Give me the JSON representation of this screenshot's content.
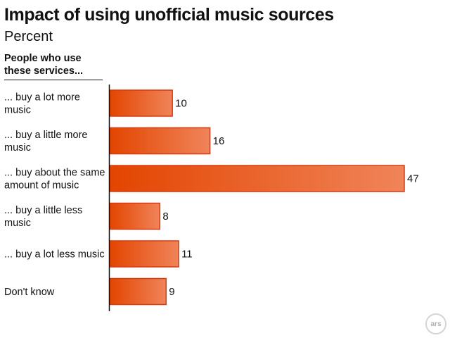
{
  "chart_data": {
    "type": "bar",
    "orientation": "horizontal",
    "title": "Impact of using unofficial music sources",
    "subtitle": "Percent",
    "category_header": "People who use these services...",
    "categories": [
      "... buy a lot more music",
      "... buy a little more music",
      "... buy about the same amount of music",
      "... buy a little less music",
      "... buy a lot less music",
      "Don't know"
    ],
    "values": [
      10,
      16,
      47,
      8,
      11,
      9
    ],
    "value_labels": [
      "10",
      "16",
      "47",
      "8",
      "11",
      "9"
    ],
    "xlim": [
      0,
      47
    ],
    "grid": false,
    "legend": "none",
    "bar_color_left": "#e34500",
    "bar_color_right": "#f0845a",
    "bar_border": "#d83a10"
  },
  "badge": {
    "label": "ars"
  }
}
